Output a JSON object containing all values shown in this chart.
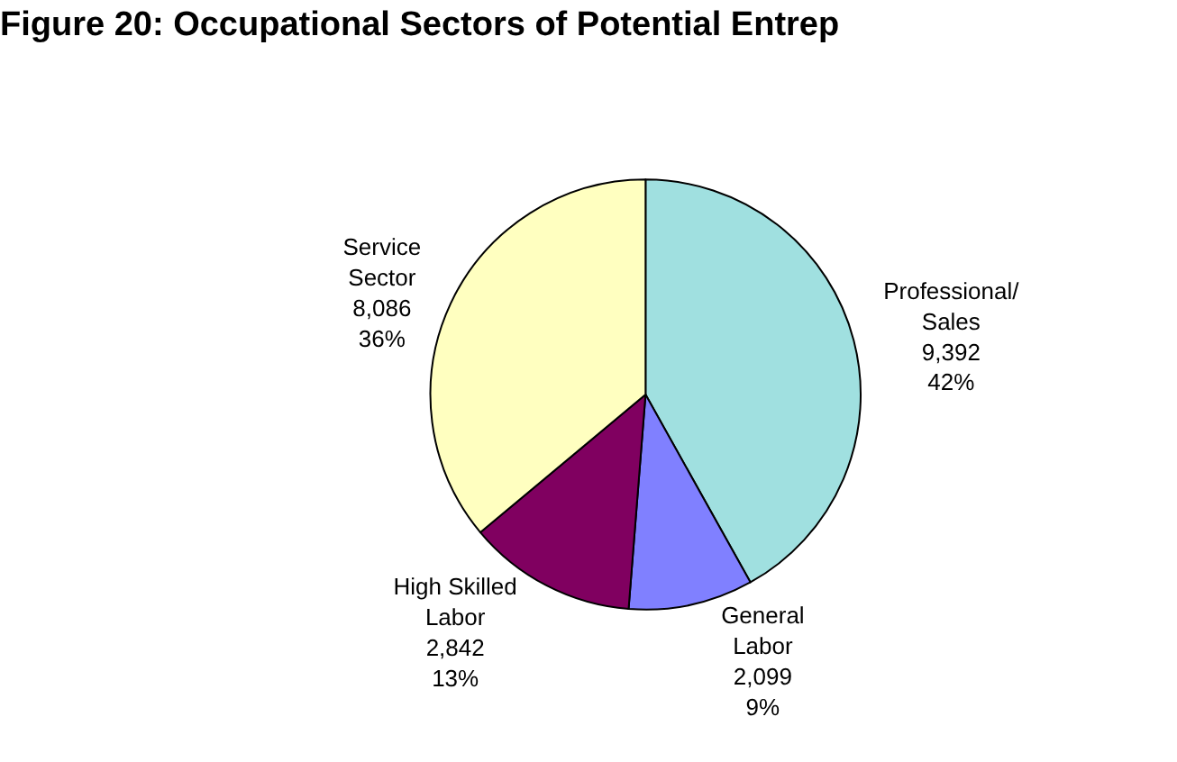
{
  "chart_data": {
    "type": "pie",
    "title": "Figure 20: Occupational Sectors of Potential Entrep",
    "categories": [
      "Professional/\nSales",
      "General\nLabor",
      "High Skilled\nLabor",
      "Service\nSector"
    ],
    "values": [
      9392,
      2099,
      2842,
      8086
    ],
    "colors": [
      "#a0e0e0",
      "#8080ff",
      "#800060",
      "#ffffc0"
    ],
    "value_labels": [
      "9,392\n42%",
      "2,099\n9%",
      "2,842\n13%",
      "8,086\n36%"
    ],
    "legend": false
  }
}
